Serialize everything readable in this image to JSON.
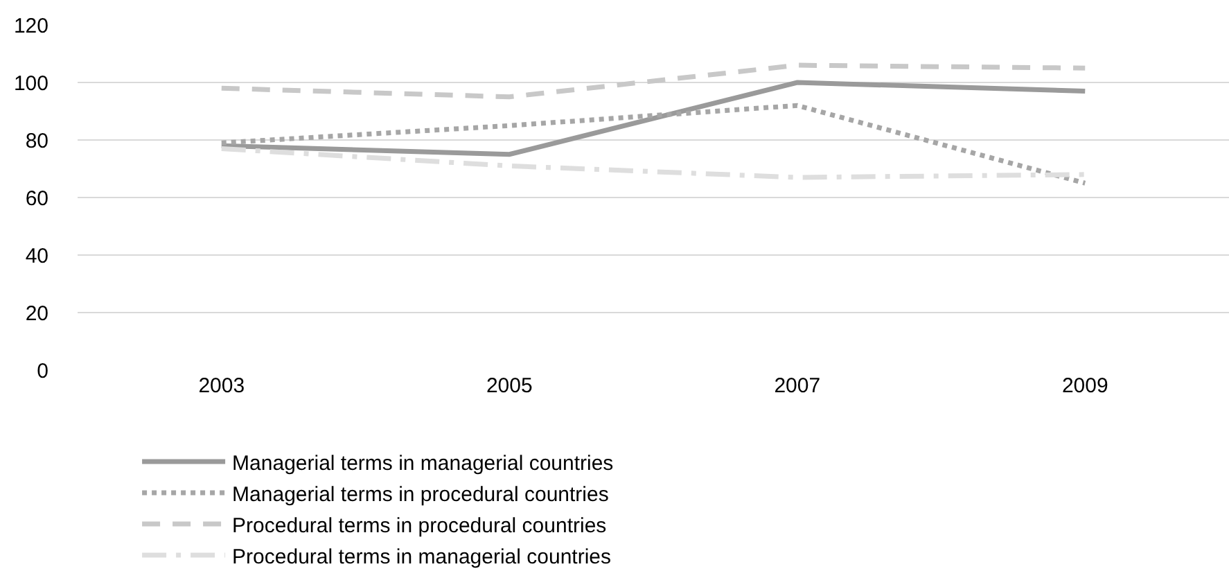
{
  "chart_data": {
    "type": "line",
    "categories": [
      "2003",
      "2005",
      "2007",
      "2009"
    ],
    "series": [
      {
        "name": "Managerial terms in managerial countries",
        "color": "#9a9a9a",
        "line_style": "solid",
        "values": [
          78,
          75,
          100,
          97
        ]
      },
      {
        "name": "Managerial terms in procedural countries",
        "color": "#a6a6a6",
        "line_style": "dotted",
        "values": [
          79,
          85,
          92,
          65
        ]
      },
      {
        "name": "Procedural terms in procedural countries",
        "color": "#c8c8c8",
        "line_style": "dashed",
        "values": [
          98,
          95,
          106,
          105
        ]
      },
      {
        "name": "Procedural terms in managerial countries",
        "color": "#dedede",
        "line_style": "dashdot",
        "values": [
          77,
          71,
          67,
          68
        ]
      }
    ],
    "ylim": [
      0,
      120
    ],
    "yticks": [
      0,
      20,
      40,
      60,
      80,
      100,
      120
    ],
    "grid": "y",
    "legend": "bottom",
    "marker": "none"
  }
}
